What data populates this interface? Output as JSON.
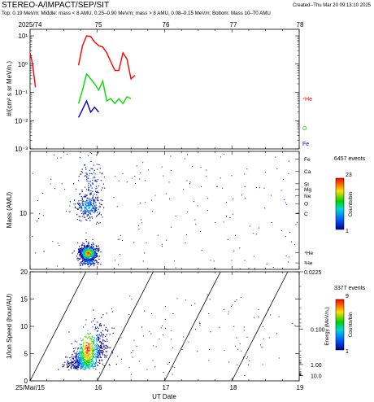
{
  "header": {
    "title": "STEREO-A/IMPACT/SEP/SIT",
    "created": "Created--Thu Mar 20 09:13:10 2025",
    "subtitle": "Top: 0.19 MeV/n; Middle: mass < 8 AMU, 0.25–0.90 MeV/n; mass > 8 AMU, 0.08–0.15 MeV/n; Bottom: Mass 10–70 AMU"
  },
  "top_axis": {
    "year_doy_label": "2025/74",
    "ticks": [
      "75",
      "76",
      "77",
      "78"
    ]
  },
  "x_axis": {
    "label": "UT Date",
    "ticks": [
      "25/Mar/15",
      "16",
      "17",
      "18",
      "19"
    ]
  },
  "colors": {
    "He": "#ff0000",
    "O": "#00dd00",
    "Fe": "#0000cc"
  },
  "chart_data": [
    {
      "type": "line",
      "ylabel": "#/(cm² s sr MeV/n.)",
      "y_scale": "log",
      "ylim": [
        0.001,
        10
      ],
      "xlim": [
        15.0,
        19.0
      ],
      "y_ticks": [
        "10⁻³",
        "10⁻²",
        "10⁻¹",
        "10⁰",
        "10¹"
      ],
      "series": [
        {
          "name": "⁴He",
          "color": "#ff0000",
          "segments": [
            [
              [
                15.0,
                2.5
              ],
              [
                15.04,
                0.9
              ],
              [
                15.08,
                0.15
              ]
            ],
            [
              [
                15.72,
                0.9
              ],
              [
                15.78,
                4.5
              ],
              [
                15.84,
                10
              ],
              [
                15.9,
                9.5
              ],
              [
                15.96,
                6
              ],
              [
                16.02,
                4.5
              ],
              [
                16.08,
                4
              ],
              [
                16.14,
                2.5
              ],
              [
                16.2,
                1.2
              ],
              [
                16.26,
                0.6
              ],
              [
                16.32,
                0.6
              ],
              [
                16.38,
                2.5
              ],
              [
                16.44,
                1.5
              ],
              [
                16.5,
                0.3
              ],
              [
                16.56,
                0.4
              ]
            ]
          ]
        },
        {
          "name": "O",
          "color": "#00dd00",
          "segments": [
            [
              [
                15.72,
                0.04
              ],
              [
                15.78,
                0.12
              ],
              [
                15.84,
                0.45
              ],
              [
                15.9,
                0.3
              ],
              [
                15.96,
                0.2
              ],
              [
                16.02,
                0.12
              ],
              [
                16.08,
                0.25
              ],
              [
                16.14,
                0.05
              ],
              [
                16.2,
                0.06
              ],
              [
                16.26,
                0.04
              ],
              [
                16.32,
                0.06
              ],
              [
                16.38,
                0.04
              ],
              [
                16.44,
                0.07
              ],
              [
                16.5,
                0.06
              ]
            ]
          ]
        },
        {
          "name": "Fe",
          "color": "#0000cc",
          "segments": [
            [
              [
                15.72,
                0.013
              ],
              [
                15.78,
                0.025
              ],
              [
                15.84,
                0.05
              ],
              [
                15.9,
                0.02
              ],
              [
                15.96,
                0.03
              ],
              [
                16.02,
                0.02
              ]
            ]
          ]
        }
      ]
    },
    {
      "type": "scatter",
      "ylabel": "Mass (AMU)",
      "y_scale": "log",
      "ylim": [
        2.5,
        70
      ],
      "xlim": [
        15.0,
        19.0
      ],
      "y_ticks": [
        "10"
      ],
      "species_labels": [
        "Fe",
        "Ca",
        "Si",
        "Mg",
        "Ne",
        "O",
        "C",
        "⁴He",
        "³He"
      ],
      "colorbar": {
        "events_label": "6457 events",
        "label": "Counts/bin",
        "min": "1",
        "max": "23"
      }
    },
    {
      "type": "scatter",
      "ylabel": "1/Ion Speed (hour/AU)",
      "xlabel": "UT Date",
      "ylim": [
        0,
        20
      ],
      "xlim": [
        15.0,
        19.0
      ],
      "y_ticks": [
        "0",
        "5",
        "10",
        "15",
        "20"
      ],
      "energy_label": "Energy (MeV/n.)",
      "energy_ticks": [
        "0.0225",
        "0.100",
        "1.00",
        "10.0"
      ],
      "colorbar": {
        "events_label": "3377 events",
        "label": "Counts/bin",
        "min": "1",
        "max": "9"
      }
    }
  ]
}
